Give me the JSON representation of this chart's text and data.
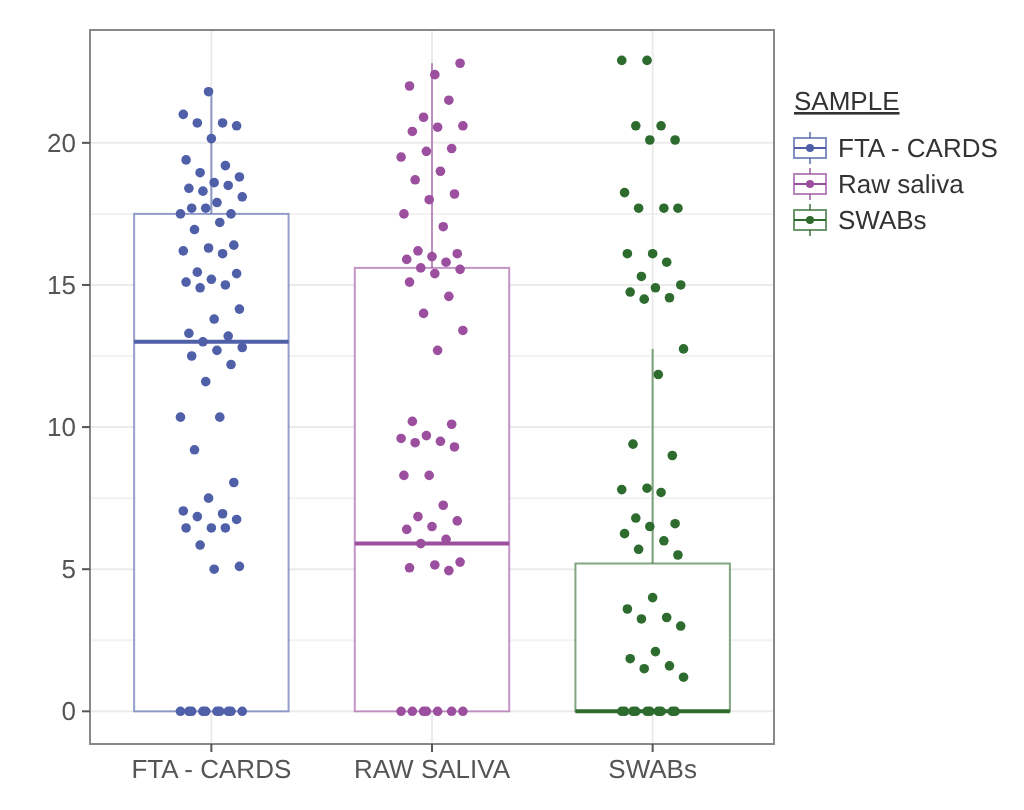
{
  "chart_data": {
    "type": "box",
    "categories": [
      "FTA - CARDS",
      "RAW SALIVA",
      "SWABs"
    ],
    "legend_title": "SAMPLE",
    "legend": "right",
    "grid": true,
    "marker": "circle",
    "ylim": [
      -1.15,
      23.97
    ],
    "yticks": [
      0,
      5,
      10,
      15,
      20
    ],
    "series": [
      {
        "name": "FTA - CARDS",
        "color": "#4f5fa8",
        "boxes": [
          {
            "low": 0,
            "q1": 0,
            "median": 13,
            "q3": 17.5,
            "high": 21.8
          },
          null,
          null
        ]
      },
      {
        "name": "Raw saliva",
        "color": "#9b4f9e",
        "boxes": [
          null,
          {
            "low": 0,
            "q1": 0,
            "median": 5.9,
            "q3": 15.6,
            "high": 22.8
          },
          null
        ]
      },
      {
        "name": "SWABs",
        "color": "#2e6b2e",
        "boxes": [
          null,
          null,
          {
            "low": 0,
            "q1": 0,
            "median": 0,
            "q3": 5.2,
            "high": 12.75
          }
        ]
      },
      {
        "type": "scatter",
        "color": "#4f5fa8",
        "x": [
          "FTA - CARDS",
          "FTA - CARDS",
          "FTA - CARDS",
          "FTA - CARDS",
          "FTA - CARDS",
          "FTA - CARDS",
          "FTA - CARDS",
          "FTA - CARDS",
          "FTA - CARDS",
          "FTA - CARDS",
          "FTA - CARDS",
          "FTA - CARDS",
          "FTA - CARDS",
          "FTA - CARDS",
          "FTA - CARDS",
          "FTA - CARDS",
          "FTA - CARDS",
          "FTA - CARDS",
          "FTA - CARDS",
          "FTA - CARDS",
          "FTA - CARDS",
          "FTA - CARDS",
          "FTA - CARDS",
          "FTA - CARDS",
          "FTA - CARDS",
          "FTA - CARDS",
          "FTA - CARDS",
          "FTA - CARDS",
          "FTA - CARDS",
          "FTA - CARDS",
          "FTA - CARDS",
          "FTA - CARDS",
          "FTA - CARDS",
          "FTA - CARDS",
          "FTA - CARDS",
          "FTA - CARDS",
          "FTA - CARDS",
          "FTA - CARDS",
          "FTA - CARDS",
          "FTA - CARDS",
          "FTA - CARDS",
          "FTA - CARDS",
          "FTA - CARDS",
          "FTA - CARDS",
          "FTA - CARDS",
          "FTA - CARDS",
          "FTA - CARDS",
          "FTA - CARDS",
          "FTA - CARDS",
          "FTA - CARDS",
          "FTA - CARDS",
          "FTA - CARDS",
          "FTA - CARDS",
          "FTA - CARDS",
          "FTA - CARDS",
          "FTA - CARDS",
          "FTA - CARDS",
          "FTA - CARDS",
          "FTA - CARDS",
          "FTA - CARDS",
          "FTA - CARDS",
          "FTA - CARDS",
          "FTA - CARDS",
          "FTA - CARDS",
          "FTA - CARDS",
          "FTA - CARDS",
          "FTA - CARDS"
        ],
        "values": [
          21.8,
          21.0,
          20.7,
          20.7,
          20.6,
          20.15,
          19.4,
          19.2,
          18.95,
          18.8,
          18.6,
          18.4,
          18.5,
          18.3,
          18.1,
          17.9,
          17.7,
          17.5,
          17.7,
          17.5,
          17.2,
          16.95,
          16.4,
          16.3,
          16.2,
          16.1,
          15.45,
          15.4,
          15.2,
          15.1,
          15.0,
          14.9,
          14.15,
          13.8,
          13.3,
          13.2,
          13.0,
          12.8,
          12.7,
          12.5,
          12.2,
          11.6,
          10.35,
          10.35,
          9.2,
          8.05,
          7.5,
          7.05,
          6.95,
          6.85,
          6.75,
          6.45,
          6.45,
          6.45,
          5.85,
          5.1,
          5.0,
          0,
          0,
          0,
          0,
          0,
          0,
          0,
          0,
          0,
          0
        ]
      },
      {
        "type": "scatter",
        "color": "#9b4f9e",
        "x": [
          "RAW SALIVA",
          "RAW SALIVA",
          "RAW SALIVA",
          "RAW SALIVA",
          "RAW SALIVA",
          "RAW SALIVA",
          "RAW SALIVA",
          "RAW SALIVA",
          "RAW SALIVA",
          "RAW SALIVA",
          "RAW SALIVA",
          "RAW SALIVA",
          "RAW SALIVA",
          "RAW SALIVA",
          "RAW SALIVA",
          "RAW SALIVA",
          "RAW SALIVA",
          "RAW SALIVA",
          "RAW SALIVA",
          "RAW SALIVA",
          "RAW SALIVA",
          "RAW SALIVA",
          "RAW SALIVA",
          "RAW SALIVA",
          "RAW SALIVA",
          "RAW SALIVA",
          "RAW SALIVA",
          "RAW SALIVA",
          "RAW SALIVA",
          "RAW SALIVA",
          "RAW SALIVA",
          "RAW SALIVA",
          "RAW SALIVA",
          "RAW SALIVA",
          "RAW SALIVA",
          "RAW SALIVA",
          "RAW SALIVA",
          "RAW SALIVA",
          "RAW SALIVA",
          "RAW SALIVA",
          "RAW SALIVA",
          "RAW SALIVA",
          "RAW SALIVA",
          "RAW SALIVA",
          "RAW SALIVA",
          "RAW SALIVA",
          "RAW SALIVA",
          "RAW SALIVA",
          "RAW SALIVA",
          "RAW SALIVA",
          "RAW SALIVA",
          "RAW SALIVA",
          "RAW SALIVA",
          "RAW SALIVA",
          "RAW SALIVA",
          "RAW SALIVA",
          "RAW SALIVA"
        ],
        "values": [
          22.8,
          22.4,
          22.0,
          21.5,
          20.9,
          20.6,
          20.55,
          20.4,
          19.8,
          19.7,
          19.5,
          19.0,
          18.7,
          18.2,
          18.0,
          17.5,
          17.05,
          16.2,
          16.1,
          16.0,
          15.9,
          15.8,
          15.6,
          15.55,
          15.4,
          15.1,
          14.6,
          14.0,
          13.4,
          12.7,
          10.2,
          10.1,
          9.7,
          9.6,
          9.5,
          9.45,
          9.3,
          8.3,
          8.3,
          7.25,
          6.85,
          6.7,
          6.5,
          6.4,
          6.05,
          5.9,
          5.25,
          5.15,
          5.05,
          4.95,
          0,
          0,
          0,
          0,
          0,
          0,
          0
        ]
      },
      {
        "type": "scatter",
        "color": "#2e6b2e",
        "x": [
          "SWABs",
          "SWABs",
          "SWABs",
          "SWABs",
          "SWABs",
          "SWABs",
          "SWABs",
          "SWABs",
          "SWABs",
          "SWABs",
          "SWABs",
          "SWABs",
          "SWABs",
          "SWABs",
          "SWABs",
          "SWABs",
          "SWABs",
          "SWABs",
          "SWABs",
          "SWABs",
          "SWABs",
          "SWABs",
          "SWABs",
          "SWABs",
          "SWABs",
          "SWABs",
          "SWABs",
          "SWABs",
          "SWABs",
          "SWABs",
          "SWABs",
          "SWABs",
          "SWABs",
          "SWABs",
          "SWABs",
          "SWABs",
          "SWABs",
          "SWABs",
          "SWABs",
          "SWABs",
          "SWABs",
          "SWABs",
          "SWABs",
          "SWABs",
          "SWABs",
          "SWABs",
          "SWABs",
          "SWABs",
          "SWABs",
          "SWABs",
          "SWABs",
          "SWABs",
          "SWABs"
        ],
        "values": [
          22.9,
          22.9,
          20.6,
          20.6,
          20.1,
          20.1,
          18.25,
          17.7,
          17.7,
          17.7,
          16.1,
          16.1,
          15.8,
          15.3,
          15.0,
          14.9,
          14.75,
          14.55,
          14.5,
          12.75,
          11.85,
          9.4,
          9.0,
          7.85,
          7.8,
          7.7,
          6.8,
          6.6,
          6.5,
          6.25,
          6.0,
          5.7,
          5.5,
          4.0,
          3.6,
          3.3,
          3.25,
          3.0,
          2.1,
          1.85,
          1.6,
          1.5,
          1.2,
          0,
          0,
          0,
          0,
          0,
          0,
          0,
          0,
          0,
          0
        ]
      }
    ]
  }
}
